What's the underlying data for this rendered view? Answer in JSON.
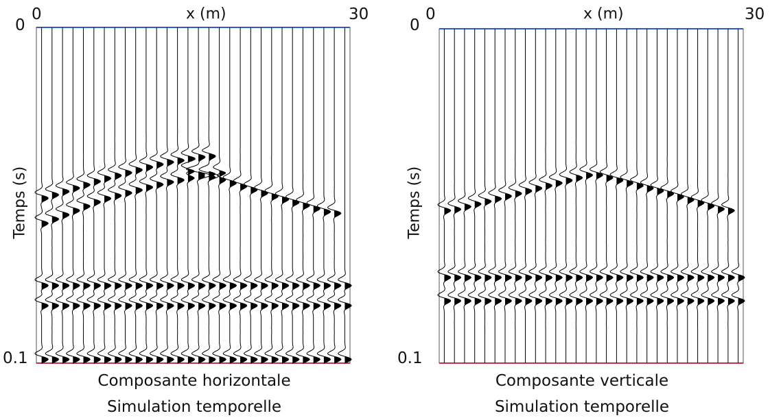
{
  "chart_data": [
    {
      "type": "seismogram",
      "component": "horizontal",
      "xlabel": "x (m)",
      "ylabel": "Temps (s)",
      "xlim": [
        0,
        30
      ],
      "ylim": [
        0,
        0.1
      ],
      "x_ticks": [
        "0",
        "30"
      ],
      "y_ticks": [
        "0",
        "0.1"
      ],
      "caption_lines": [
        "Composante horizontale",
        "Simulation temporelle"
      ],
      "trace_count": 30,
      "grid": false,
      "colors": {
        "trace": "#000000",
        "wiggle_fill": "#000000",
        "frame_top": "#2a5bd7",
        "frame_bottom": "#c0304a"
      },
      "arrivals": [
        {
          "x": [
            0.5,
            6,
            12,
            17
          ],
          "t": [
            0.0575,
            0.0505,
            0.0455,
            0.0425
          ]
        },
        {
          "x": [
            0.5,
            6,
            12,
            16
          ],
          "t": [
            0.05,
            0.0445,
            0.0395,
            0.0375
          ]
        },
        {
          "x": [
            14.5,
            18,
            22,
            28
          ],
          "t": [
            0.042,
            0.045,
            0.049,
            0.0545
          ]
        },
        {
          "x": [
            0.5,
            30
          ],
          "t": [
            0.076,
            0.076
          ]
        },
        {
          "x": [
            0.5,
            30
          ],
          "t": [
            0.082,
            0.082
          ]
        },
        {
          "x": [
            0.5,
            30
          ],
          "t": [
            0.098,
            0.098
          ]
        }
      ]
    },
    {
      "type": "seismogram",
      "component": "vertical",
      "xlabel": "x (m)",
      "ylabel": "Temps (s)",
      "xlim": [
        0,
        30
      ],
      "ylim": [
        0,
        0.1
      ],
      "x_ticks": [
        "0",
        "30"
      ],
      "y_ticks": [
        "0",
        "0.1"
      ],
      "caption_lines": [
        "Composante verticale",
        "Simulation temporelle"
      ],
      "trace_count": 30,
      "grid": false,
      "colors": {
        "trace": "#000000",
        "wiggle_fill": "#000000",
        "frame_top": "#2a5bd7",
        "frame_bottom": "#c0304a"
      },
      "arrivals": [
        {
          "x": [
            1,
            8,
            15,
            22,
            28
          ],
          "t": [
            0.0535,
            0.048,
            0.0425,
            0.048,
            0.0535
          ]
        },
        {
          "x": [
            1,
            30
          ],
          "t": [
            0.0735,
            0.0735
          ]
        },
        {
          "x": [
            1,
            30
          ],
          "t": [
            0.0805,
            0.0805
          ]
        }
      ]
    }
  ]
}
